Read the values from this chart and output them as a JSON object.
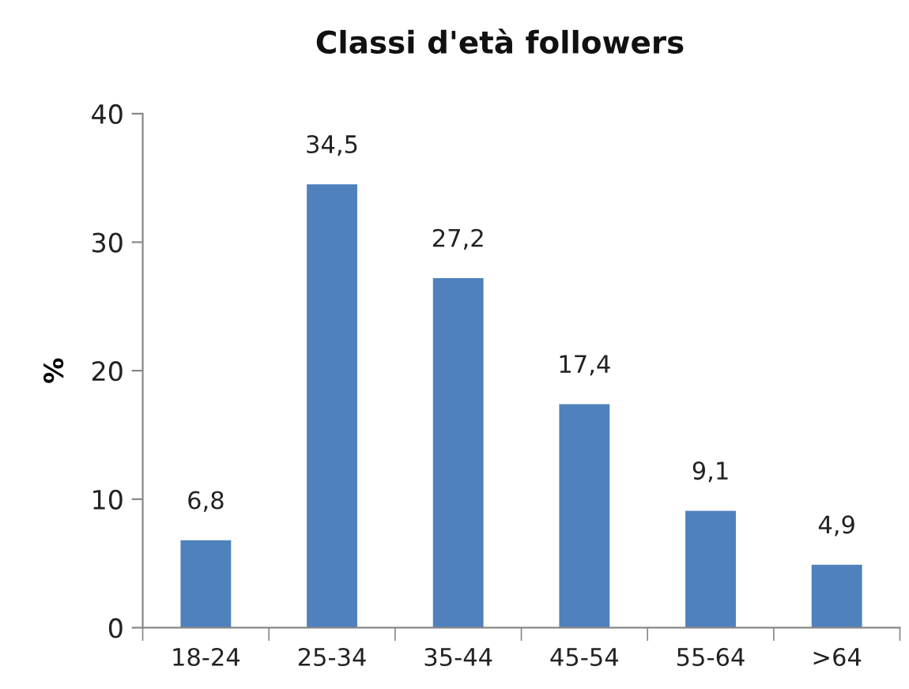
{
  "chart_data": {
    "type": "bar",
    "title": "Classi d'età followers",
    "ylabel": "%",
    "categories": [
      "18-24",
      "25-34",
      "35-44",
      "45-54",
      "55-64",
      ">64"
    ],
    "values": [
      6.8,
      34.5,
      27.2,
      17.4,
      9.1,
      4.9
    ],
    "value_labels": [
      "6,8",
      "34,5",
      "27,2",
      "17,4",
      "9,1",
      "4,9"
    ],
    "color": "#4f81bd",
    "ylim": [
      0,
      40
    ],
    "yticks": [
      0,
      10,
      20,
      30,
      40
    ],
    "grid": false,
    "legend": false
  }
}
